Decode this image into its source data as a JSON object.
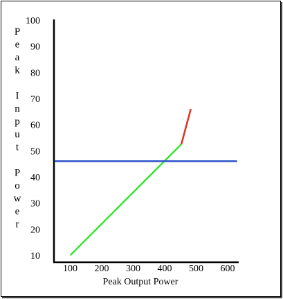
{
  "chart_data": {
    "type": "line",
    "title": "",
    "xlabel": "Peak Output Power",
    "ylabel": "Peak Input Power",
    "xlim": [
      50,
      630
    ],
    "ylim": [
      8,
      100
    ],
    "x_ticks": [
      100,
      200,
      300,
      400,
      500,
      600
    ],
    "y_ticks": [
      10,
      20,
      30,
      40,
      50,
      60,
      70,
      80,
      90,
      100
    ],
    "grid": false,
    "legend": "none",
    "series": [
      {
        "color": "#33e62e",
        "points": [
          [
            100,
            10
          ],
          [
            453,
            52.5
          ]
        ]
      },
      {
        "color": "#e0301e",
        "points": [
          [
            453,
            52.5
          ],
          [
            483,
            66
          ]
        ]
      },
      {
        "color": "#2b50c8",
        "points": [
          [
            50,
            46
          ],
          [
            630,
            46
          ]
        ]
      }
    ]
  }
}
